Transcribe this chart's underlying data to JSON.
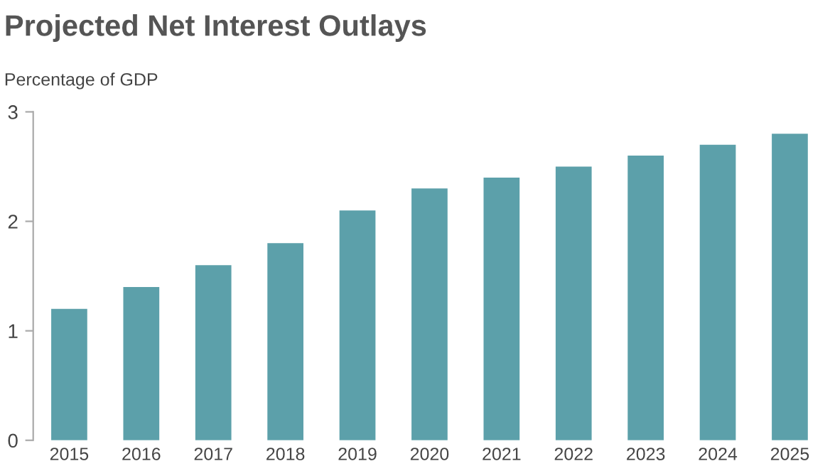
{
  "chart_data": {
    "type": "bar",
    "title": "Projected Net Interest Outlays",
    "ylabel": "Percentage of GDP",
    "categories": [
      "2015",
      "2016",
      "2017",
      "2018",
      "2019",
      "2020",
      "2021",
      "2022",
      "2023",
      "2024",
      "2025"
    ],
    "values": [
      1.2,
      1.4,
      1.6,
      1.8,
      2.1,
      2.3,
      2.4,
      2.5,
      2.6,
      2.7,
      2.8
    ],
    "color": "#5ca0aa",
    "ylim": [
      0,
      3
    ],
    "yticks": [
      0,
      1,
      2,
      3
    ],
    "grid": false,
    "legend": false
  }
}
